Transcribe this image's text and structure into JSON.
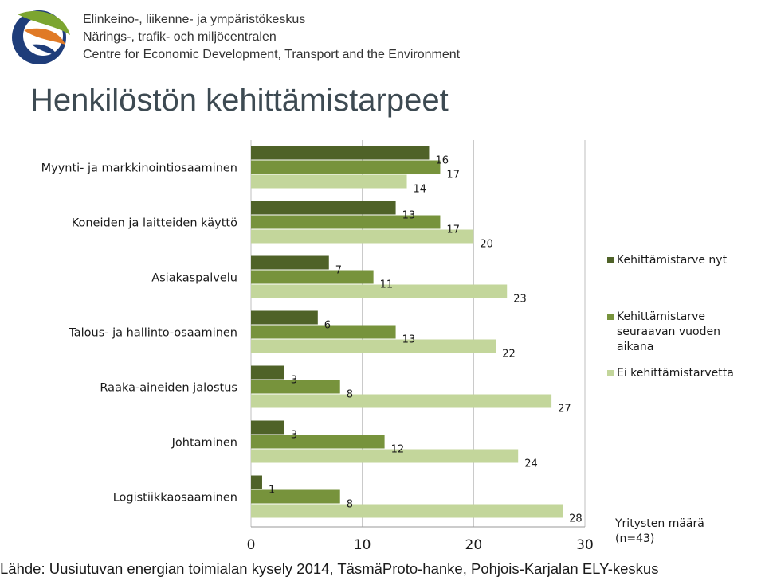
{
  "header": {
    "org_lines": [
      "Elinkeino-, liikenne- ja ympäristökeskus",
      "Närings-, trafik- och miljöcentralen",
      "Centre for Economic Development, Transport and the Environment"
    ],
    "logo_icon": "ely-centre-logo-icon"
  },
  "page_title": "Henkilöstön kehittämistarpeet",
  "chart_data": {
    "type": "bar",
    "orientation": "horizontal",
    "categories": [
      "Myynti- ja markkinointiosaaminen",
      "Koneiden ja laitteiden käyttö",
      "Asiakaspalvelu",
      "Talous- ja hallinto-osaaminen",
      "Raaka-aineiden jalostus",
      "Johtaminen",
      "Logistiikkaosaaminen"
    ],
    "series": [
      {
        "name": "Kehittämistarve nyt",
        "color": "#4f6228",
        "values": [
          16,
          13,
          7,
          6,
          3,
          3,
          1
        ]
      },
      {
        "name": "Kehittämistarve seuraavan vuoden aikana",
        "color": "#77933c",
        "values": [
          17,
          17,
          11,
          13,
          8,
          12,
          8
        ]
      },
      {
        "name": "Ei kehittämistarvetta",
        "color": "#c3d69b",
        "values": [
          14,
          20,
          23,
          22,
          27,
          24,
          28
        ]
      }
    ],
    "xlim": [
      0,
      30
    ],
    "xticks": [
      0,
      10,
      20,
      30
    ],
    "grid": true,
    "data_labels": true,
    "legend_position": "right",
    "note": "Yritysten määrä (n=43)"
  },
  "source": "Lähde: Uusiutuvan energian toimialan kysely 2014, TäsmäProto-hanke, Pohjois-Karjalan ELY-keskus"
}
